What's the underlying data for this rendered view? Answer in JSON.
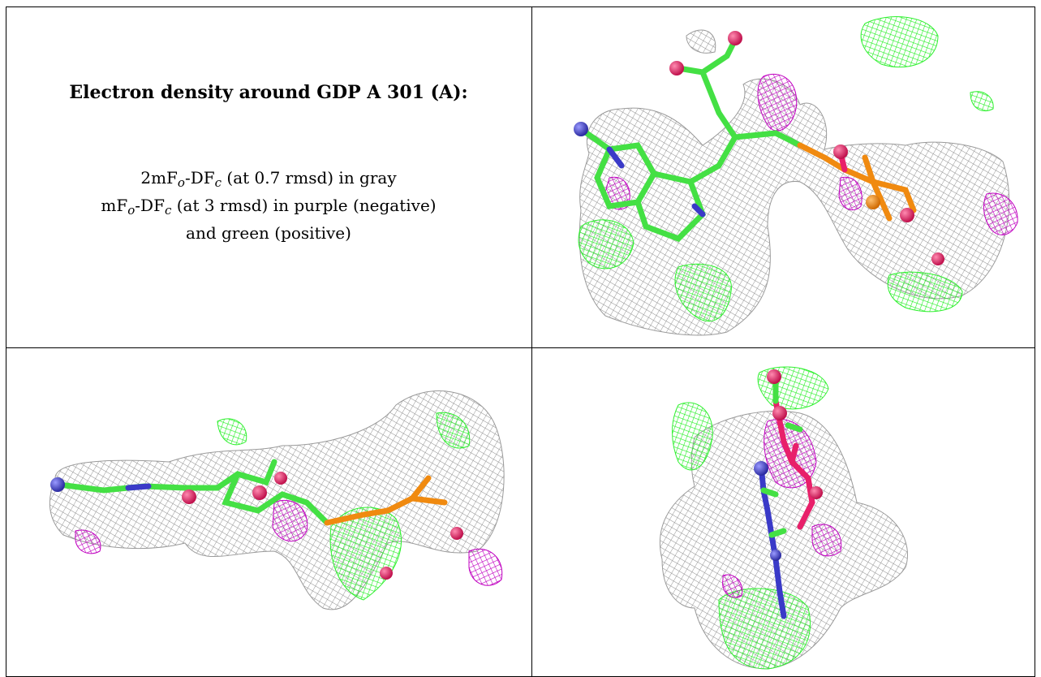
{
  "caption": {
    "title": "Electron density around GDP A 301 (A):",
    "line1": {
      "prefix": "2mF",
      "sub1": "o",
      "mid": "-DF",
      "sub2": "c",
      "suffix": " (at 0.7 rmsd) in gray"
    },
    "line2": {
      "prefix": "mF",
      "sub1": "o",
      "mid": "-DF",
      "sub2": "c",
      "suffix": " (at 3 rmsd) in purple (negative)"
    },
    "line3": "and green (positive)"
  },
  "colors": {
    "mesh_2fofc": "#8a8a8a",
    "mesh_negative": "#c000c0",
    "mesh_positive": "#2ef02e",
    "carbon": "#44e044",
    "nitrogen": "#3a3ac8",
    "oxygen": "#e8206a",
    "phosphorus": "#f08a10"
  },
  "panels": [
    {
      "view": "view-1"
    },
    {
      "view": "view-2"
    },
    {
      "view": "view-3"
    }
  ]
}
